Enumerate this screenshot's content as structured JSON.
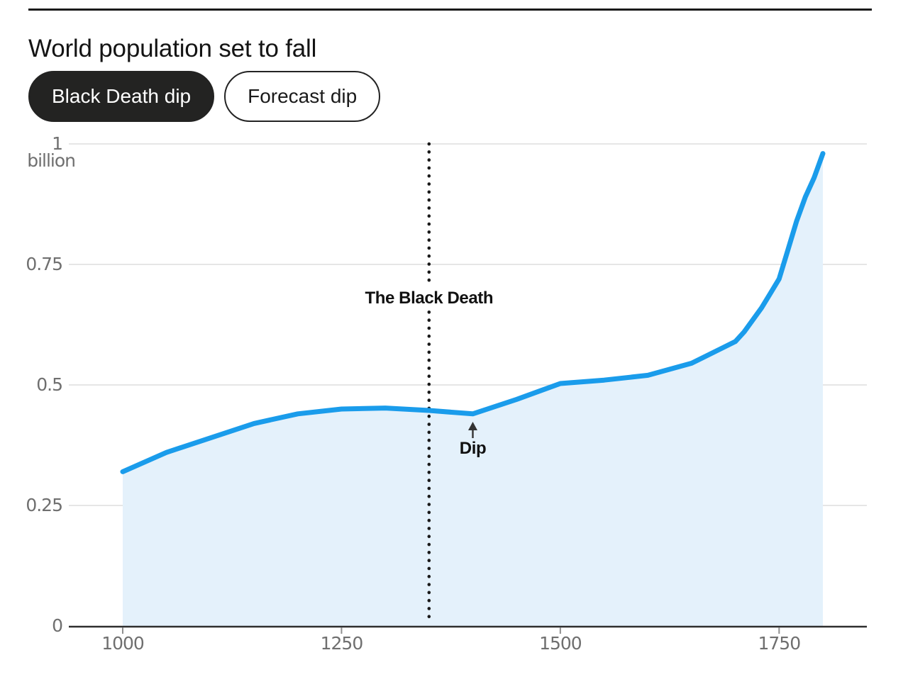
{
  "header": {
    "title": "World population set to fall"
  },
  "toggles": [
    {
      "label": "Black Death dip",
      "active": true
    },
    {
      "label": "Forecast dip",
      "active": false
    }
  ],
  "colors": {
    "line": "#1A9CEB",
    "fill": "#E4F1FB",
    "grid": "#DEDEDE",
    "axis": "#2E2E2E",
    "tick": "#8F8F8F",
    "tick_text": "#6F6F6F",
    "annotation": "#111111",
    "active_pill": "#232322",
    "rule": "#1A1A1A"
  },
  "chart_data": {
    "type": "area",
    "title": "World population set to fall",
    "series": [
      {
        "name": "World population",
        "x": [
          1000,
          1050,
          1100,
          1150,
          1200,
          1250,
          1300,
          1350,
          1400,
          1450,
          1500,
          1550,
          1600,
          1650,
          1700,
          1710,
          1720,
          1730,
          1740,
          1750,
          1760,
          1770,
          1780,
          1790,
          1800
        ],
        "values": [
          0.32,
          0.36,
          0.39,
          0.42,
          0.44,
          0.45,
          0.452,
          0.447,
          0.44,
          0.47,
          0.503,
          0.51,
          0.52,
          0.545,
          0.59,
          0.61,
          0.635,
          0.66,
          0.69,
          0.72,
          0.78,
          0.84,
          0.89,
          0.93,
          0.98
        ]
      }
    ],
    "xlabel": "",
    "ylabel": "billion",
    "unit_label": "billion",
    "xlim": [
      1000,
      1800
    ],
    "ylim": [
      0,
      1
    ],
    "xticks": [
      1000,
      1250,
      1500,
      1750
    ],
    "ytick_values": [
      0,
      0.25,
      0.5,
      0.75,
      1
    ],
    "ytick_labels": [
      "0",
      "0.25",
      "0.5",
      "0.75",
      "1"
    ],
    "grid": true,
    "legend_position": "none",
    "annotations": {
      "vline": {
        "x": 1350,
        "label": "The Black Death",
        "style": "dotted"
      },
      "dip_arrow": {
        "x": 1400,
        "y": 0.44,
        "label": "Dip"
      }
    }
  }
}
